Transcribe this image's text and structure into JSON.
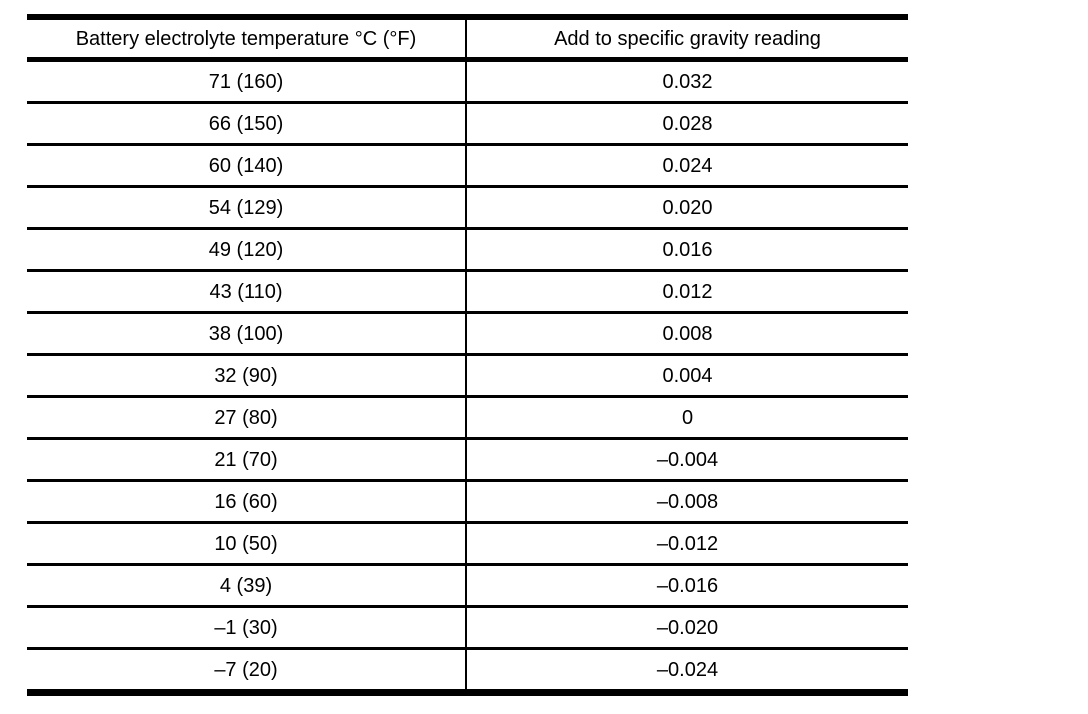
{
  "colors": {
    "background": "#ffffff",
    "rule": "#000000",
    "text": "#000000"
  },
  "table": {
    "headers": [
      "Battery electrolyte temperature °C (°F)",
      "Add to specific gravity reading"
    ],
    "rows": [
      [
        "71 (160)",
        "0.032"
      ],
      [
        "66 (150)",
        "0.028"
      ],
      [
        "60 (140)",
        "0.024"
      ],
      [
        "54 (129)",
        "0.020"
      ],
      [
        "49 (120)",
        "0.016"
      ],
      [
        "43 (110)",
        "0.012"
      ],
      [
        "38 (100)",
        "0.008"
      ],
      [
        "32 (90)",
        "0.004"
      ],
      [
        "27 (80)",
        "0"
      ],
      [
        "21 (70)",
        "–0.004"
      ],
      [
        "16 (60)",
        "–0.008"
      ],
      [
        "10 (50)",
        "–0.012"
      ],
      [
        "4 (39)",
        "–0.016"
      ],
      [
        "–1 (30)",
        "–0.020"
      ],
      [
        "–7 (20)",
        "–0.024"
      ]
    ]
  }
}
